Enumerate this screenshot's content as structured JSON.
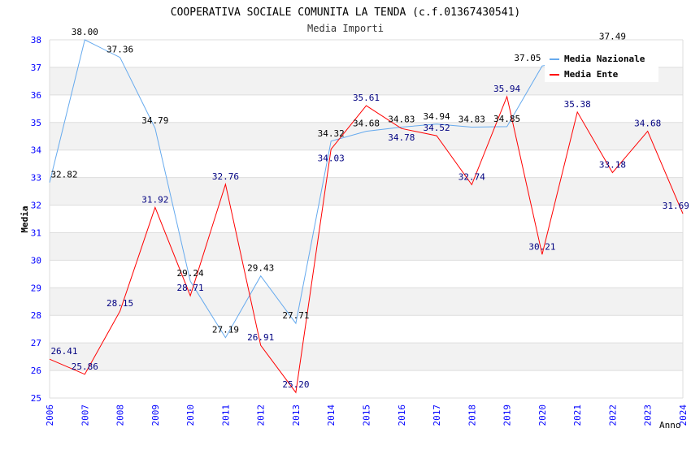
{
  "chart_data": {
    "type": "line",
    "title": "COOPERATIVA SOCIALE COMUNITA LA TENDA (c.f.01367430541)",
    "subtitle": "Media Importi",
    "xlabel": "Anno",
    "ylabel": "Media",
    "ylim": [
      25,
      38
    ],
    "xlim": [
      2006,
      2024
    ],
    "grid": true,
    "legend_position": "top-right",
    "x": [
      2006,
      2007,
      2008,
      2009,
      2010,
      2011,
      2012,
      2013,
      2014,
      2015,
      2016,
      2017,
      2018,
      2019,
      2020,
      2021,
      2022,
      2023,
      2024
    ],
    "x_tick_labels": [
      "2006",
      "2007",
      "2008",
      "2009",
      "2010",
      "2011",
      "2012",
      "2013",
      "2014",
      "2015",
      "2016",
      "2017",
      "2018",
      "2019",
      "2020",
      "2021",
      "2022",
      "2023",
      "2024"
    ],
    "y_tick_labels": [
      "25",
      "26",
      "27",
      "28",
      "29",
      "30",
      "31",
      "32",
      "33",
      "34",
      "35",
      "36",
      "37",
      "38"
    ],
    "series": [
      {
        "name": "Media Nazionale",
        "color": "#66aaee",
        "label_color": "#000000",
        "values": [
          32.82,
          38.0,
          37.36,
          34.79,
          29.24,
          27.19,
          29.43,
          27.71,
          34.32,
          34.68,
          34.83,
          34.94,
          34.83,
          34.85,
          37.05,
          37.3,
          37.49,
          null,
          null
        ],
        "labels": [
          "32.82",
          "38.00",
          "37.36",
          "34.79",
          "29.24",
          "27.19",
          "29.43",
          "27.71",
          "34.32",
          "34.68",
          "34.83",
          "34.94",
          "34.83",
          "34.85",
          "37.05",
          "",
          "37.49",
          "",
          ""
        ]
      },
      {
        "name": "Media Ente",
        "color": "#ff0000",
        "label_color": "#000080",
        "values": [
          26.41,
          25.86,
          28.15,
          31.92,
          28.71,
          32.76,
          26.91,
          25.2,
          34.03,
          35.61,
          34.78,
          34.52,
          32.74,
          35.94,
          30.21,
          35.38,
          33.18,
          34.68,
          31.69
        ],
        "labels": [
          "26.41",
          "25.86",
          "28.15",
          "31.92",
          "28.71",
          "32.76",
          "26.91",
          "25.20",
          "34.03",
          "35.61",
          "34.78",
          "34.52",
          "32.74",
          "35.94",
          "30.21",
          "35.38",
          "33.18",
          "34.68",
          "31.69"
        ]
      }
    ]
  }
}
